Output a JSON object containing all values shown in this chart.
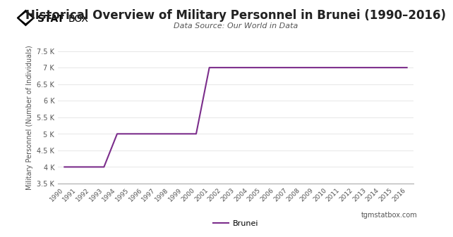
{
  "title": "Historical Overview of Military Personnel in Brunei (1990–2016)",
  "subtitle": "Data Source: Our World in Data",
  "ylabel": "Military Personnel (Number of Individuals)",
  "line_color": "#7B2D8B",
  "legend_label": "Brunei",
  "background_color": "#ffffff",
  "plot_bg_color": "#ffffff",
  "years": [
    1990,
    1991,
    1992,
    1993,
    1994,
    1995,
    1996,
    1997,
    1998,
    1999,
    2000,
    2001,
    2002,
    2003,
    2004,
    2005,
    2006,
    2007,
    2008,
    2009,
    2010,
    2011,
    2012,
    2013,
    2014,
    2015,
    2016
  ],
  "values": [
    4000,
    4000,
    4000,
    4000,
    5000,
    5000,
    5000,
    5000,
    5000,
    5000,
    5000,
    7000,
    7000,
    7000,
    7000,
    7000,
    7000,
    7000,
    7000,
    7000,
    7000,
    7000,
    7000,
    7000,
    7000,
    7000,
    7000
  ],
  "ylim": [
    3500,
    7500
  ],
  "yticks": [
    3500,
    4000,
    4500,
    5000,
    5500,
    6000,
    6500,
    7000,
    7500
  ],
  "ytick_labels": [
    "3.5 K",
    "4 K",
    "4.5 K",
    "5 K",
    "5.5 K",
    "6 K",
    "6.5 K",
    "7 K",
    "7.5 K"
  ],
  "footer_text": "tgmstatbox.com",
  "title_fontsize": 12,
  "subtitle_fontsize": 8,
  "axis_label_fontsize": 7,
  "tick_fontsize": 7,
  "legend_fontsize": 8,
  "line_width": 1.5
}
